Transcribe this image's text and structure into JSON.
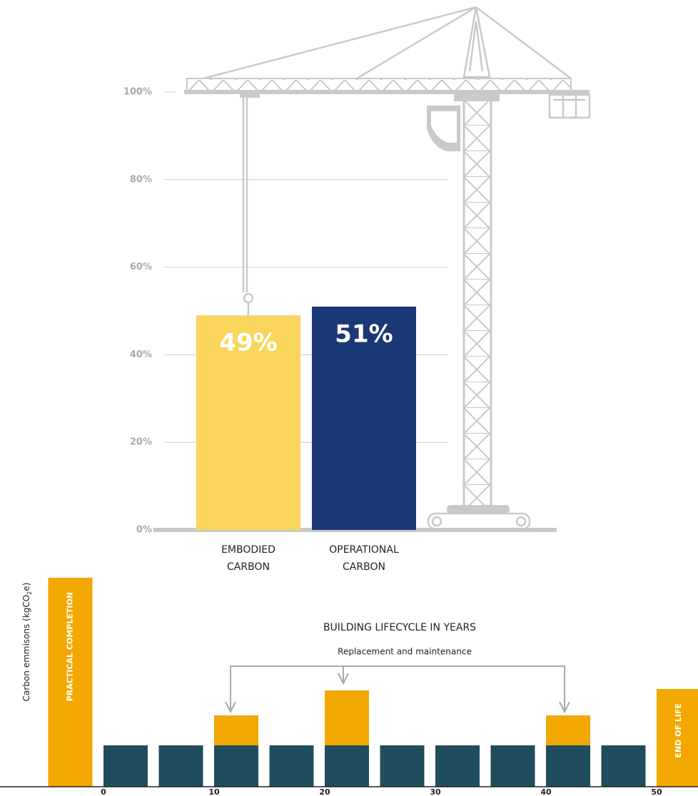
{
  "chart_data": [
    {
      "type": "bar",
      "categories": [
        "EMBODIED CARBON",
        "OPERATIONAL CARBON"
      ],
      "values": [
        49,
        51
      ],
      "value_labels": [
        "49%",
        "51%"
      ],
      "colors": [
        "#f9d55b",
        "#1b3876"
      ],
      "ylim": [
        0,
        100
      ],
      "yticks": [
        {
          "value": 0,
          "label": "0%"
        },
        {
          "value": 20,
          "label": "20%"
        },
        {
          "value": 40,
          "label": "40%"
        },
        {
          "value": 60,
          "label": "60%"
        },
        {
          "value": 80,
          "label": "80%"
        },
        {
          "value": 100,
          "label": "100%"
        }
      ],
      "grid": true
    },
    {
      "type": "bar",
      "stacked": true,
      "title": "BUILDING LIFECYCLE IN YEARS",
      "annotation": "Replacement and maintenance",
      "ylabel": [
        "Carbon emmisons (kgCO",
        "2",
        "e)"
      ],
      "x": [
        -5,
        0,
        5,
        10,
        15,
        20,
        25,
        30,
        35,
        40,
        45,
        50
      ],
      "xlim": [
        -5,
        54
      ],
      "xticks": [
        0,
        10,
        20,
        30,
        40,
        50
      ],
      "ylim": [
        0,
        300
      ],
      "series": [
        {
          "color": "#1f4d5e",
          "values": [
            null,
            58,
            58,
            58,
            58,
            58,
            58,
            58,
            58,
            58,
            58,
            null
          ]
        },
        {
          "color": "#f2a800",
          "values": [
            293,
            null,
            null,
            42,
            null,
            77,
            null,
            null,
            null,
            42,
            null,
            137
          ]
        }
      ],
      "bar_labels": [
        "PRACTICAL COMPLETION",
        null,
        null,
        null,
        null,
        null,
        null,
        null,
        null,
        null,
        null,
        "END OF LIFE"
      ]
    }
  ]
}
